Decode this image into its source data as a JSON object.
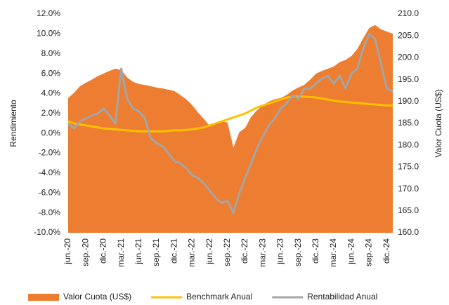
{
  "chart_data": {
    "type": "combo",
    "y_label": "Rendimiento",
    "y2_label": "Valor Cuota (US$)",
    "categories": [
      "jun.-20",
      null,
      null,
      "sep.-20",
      null,
      null,
      "dic.-20",
      null,
      null,
      "mar.-21",
      null,
      null,
      "jun.-21",
      null,
      null,
      "sep.-21",
      null,
      null,
      "dic.-21",
      null,
      null,
      "mar.-22",
      null,
      null,
      "jun.-22",
      null,
      null,
      "sep.-22",
      null,
      null,
      "dic.-22",
      null,
      null,
      "mar.-23",
      null,
      null,
      "jun.-23",
      null,
      null,
      "sep.-23",
      null,
      null,
      "dic.-23",
      null,
      null,
      "mar.-24",
      null,
      null,
      "jun.-24",
      null,
      null,
      "sep.-24",
      null,
      null,
      "dic.-24",
      null
    ],
    "series": [
      {
        "name": "Valor Cuota (US$)",
        "kind": "area",
        "axis": "y2",
        "color": "#ED7D31",
        "values": [
          190.8,
          192,
          193.5,
          194.3,
          195,
          195.8,
          196.4,
          197,
          197.5,
          197.2,
          195.5,
          194.5,
          194,
          193.8,
          193.5,
          193.2,
          193,
          192.7,
          192.4,
          191.5,
          190.5,
          189.2,
          187.5,
          186,
          184.4,
          184.8,
          185.5,
          185.2,
          179.5,
          183,
          184,
          186.5,
          188,
          189.2,
          190,
          190.5,
          190.8,
          191.5,
          192.5,
          193.2,
          193.8,
          195,
          196.4,
          197,
          197.5,
          198,
          199,
          199.5,
          200.4,
          202,
          204.5,
          206.8,
          207.5,
          206.5,
          206,
          205.5
        ]
      },
      {
        "name": "Benchmark Anual",
        "kind": "line",
        "axis": "y",
        "color": "#FFC000",
        "values": [
          1.2,
          1.0,
          0.9,
          0.8,
          0.7,
          0.6,
          0.5,
          0.45,
          0.4,
          0.35,
          0.3,
          0.25,
          0.2,
          0.2,
          0.2,
          0.2,
          0.2,
          0.25,
          0.3,
          0.3,
          0.35,
          0.4,
          0.5,
          0.6,
          0.8,
          1.0,
          1.2,
          1.4,
          1.6,
          1.8,
          2.0,
          2.3,
          2.6,
          2.8,
          3.0,
          3.2,
          3.4,
          3.6,
          3.7,
          3.7,
          3.7,
          3.65,
          3.6,
          3.5,
          3.4,
          3.3,
          3.2,
          3.15,
          3.1,
          3.05,
          3.0,
          2.95,
          2.9,
          2.85,
          2.8,
          2.8
        ]
      },
      {
        "name": "Rentabilidad Anual",
        "kind": "line",
        "axis": "y",
        "color": "#A5A5A5",
        "values": [
          1.0,
          0.5,
          1.2,
          1.5,
          1.8,
          2.0,
          2.5,
          1.8,
          1.0,
          6.5,
          3.5,
          2.5,
          2.2,
          1.5,
          -0.5,
          -1.0,
          -1.3,
          -2.0,
          -2.8,
          -3.0,
          -3.5,
          -4.2,
          -4.5,
          -5.0,
          -5.8,
          -6.5,
          -7.0,
          -6.8,
          -8.0,
          -6.0,
          -4.5,
          -3.0,
          -1.5,
          -0.3,
          0.8,
          1.5,
          2.5,
          3.0,
          3.8,
          3.5,
          4.5,
          4.5,
          5.0,
          5.5,
          5.8,
          5.0,
          5.8,
          4.5,
          6.0,
          6.5,
          8.5,
          10.0,
          9.5,
          7.0,
          4.5,
          4.2
        ]
      }
    ],
    "ylim": [
      -10,
      12
    ],
    "yticks": [
      {
        "value": -10,
        "label": "-10.0%"
      },
      {
        "value": -8,
        "label": "-8.0%"
      },
      {
        "value": -6,
        "label": "-6.0%"
      },
      {
        "value": -4,
        "label": "-4.0%"
      },
      {
        "value": -2,
        "label": "-2.0%"
      },
      {
        "value": 0,
        "label": "0.0%"
      },
      {
        "value": 2,
        "label": "2.0%"
      },
      {
        "value": 4,
        "label": "4.0%"
      },
      {
        "value": 6,
        "label": "6.0%"
      },
      {
        "value": 8,
        "label": "8.0%"
      },
      {
        "value": 10,
        "label": "10.0%"
      },
      {
        "value": 12,
        "label": "12.0%"
      }
    ],
    "y2lim": [
      160,
      210
    ],
    "y2ticks": [
      {
        "value": 160,
        "label": "160.0"
      },
      {
        "value": 165,
        "label": "165.0"
      },
      {
        "value": 170,
        "label": "170.0"
      },
      {
        "value": 175,
        "label": "175.0"
      },
      {
        "value": 180,
        "label": "180.0"
      },
      {
        "value": 185,
        "label": "185.0"
      },
      {
        "value": 190,
        "label": "190.0"
      },
      {
        "value": 195,
        "label": "195.0"
      },
      {
        "value": 200,
        "label": "200.0"
      },
      {
        "value": 205,
        "label": "205.0"
      },
      {
        "value": 210,
        "label": "210.0"
      }
    ],
    "legend": "bottom"
  }
}
